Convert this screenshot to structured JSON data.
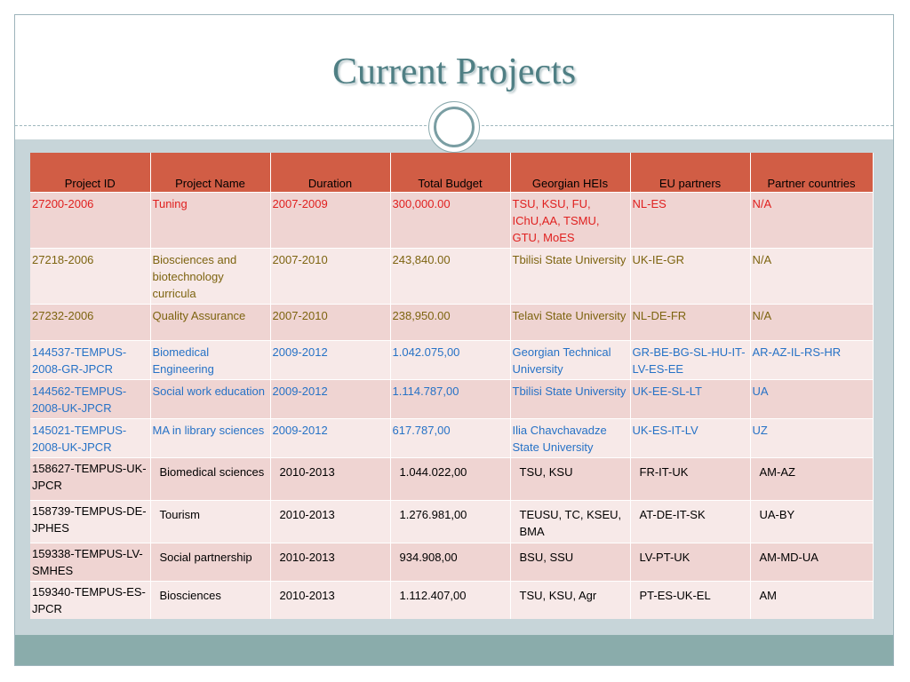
{
  "title": "Current Projects",
  "table": {
    "headers": [
      "Project ID",
      "Project Name",
      "Duration",
      "Total Budget",
      "Georgian HEIs",
      "EU partners",
      "Partner countries"
    ],
    "rows": [
      [
        "27200-2006",
        "Tuning",
        "2007-2009",
        "300,000.00",
        "TSU, KSU, FU, IChU,AA, TSMU, GTU,  MoES",
        "NL-ES",
        "N/A"
      ],
      [
        "27218-2006",
        "Biosciences and biotechnology curricula",
        "2007-2010",
        "243,840.00",
        "Tbilisi State University",
        "UK-IE-GR",
        "N/A"
      ],
      [
        "27232-2006",
        "Quality Assurance",
        "2007-2010",
        "238,950.00",
        "Telavi State University",
        "NL-DE-FR",
        "N/A"
      ],
      [
        "144537-TEMPUS-2008-GR-JPCR",
        "Biomedical Engineering",
        "2009-2012",
        "1.042.075,00",
        "Georgian Technical University",
        "GR-BE-BG-SL-HU-IT-LV-ES-EE",
        "AR-AZ-IL-RS-HR"
      ],
      [
        "144562-TEMPUS-2008-UK-JPCR",
        "Social work education",
        "2009-2012",
        "1.114.787,00",
        "Tbilisi State University",
        "UK-EE-SL-LT",
        "UA"
      ],
      [
        "145021-TEMPUS-2008-UK-JPCR",
        "MA in library sciences",
        "2009-2012",
        "617.787,00",
        "Ilia Chavchavadze State University",
        "UK-ES-IT-LV",
        "UZ"
      ],
      [
        "158627-TEMPUS-UK-JPCR",
        "Biomedical sciences",
        "2010-2013",
        "1.044.022,00",
        "TSU, KSU",
        "FR-IT-UK",
        "AM-AZ"
      ],
      [
        "158739-TEMPUS-DE-JPHES",
        "Tourism",
        "2010-2013",
        "1.276.981,00",
        "TEUSU, TC, KSEU, BMA",
        "AT-DE-IT-SK",
        "UA-BY"
      ],
      [
        "159338-TEMPUS-LV-SMHES",
        "Social partnership",
        "2010-2013",
        "934.908,00",
        "BSU, SSU",
        "LV-PT-UK",
        "AM-MD-UA"
      ],
      [
        "159340-TEMPUS-ES-JPCR",
        "Biosciences",
        "2010-2013",
        "1.112.407,00",
        "TSU, KSU, Agr",
        "PT-ES-UK-EL",
        "AM"
      ]
    ]
  },
  "colors": {
    "header_bg": "#d15d45",
    "row_odd": "#efd4d2",
    "row_even": "#f7e9e8",
    "text_red": "#e0201f",
    "text_olive": "#7d6410",
    "text_blue": "#2672c6",
    "title": "#4f7f84"
  },
  "icons": [
    "ring-ornament-icon"
  ]
}
